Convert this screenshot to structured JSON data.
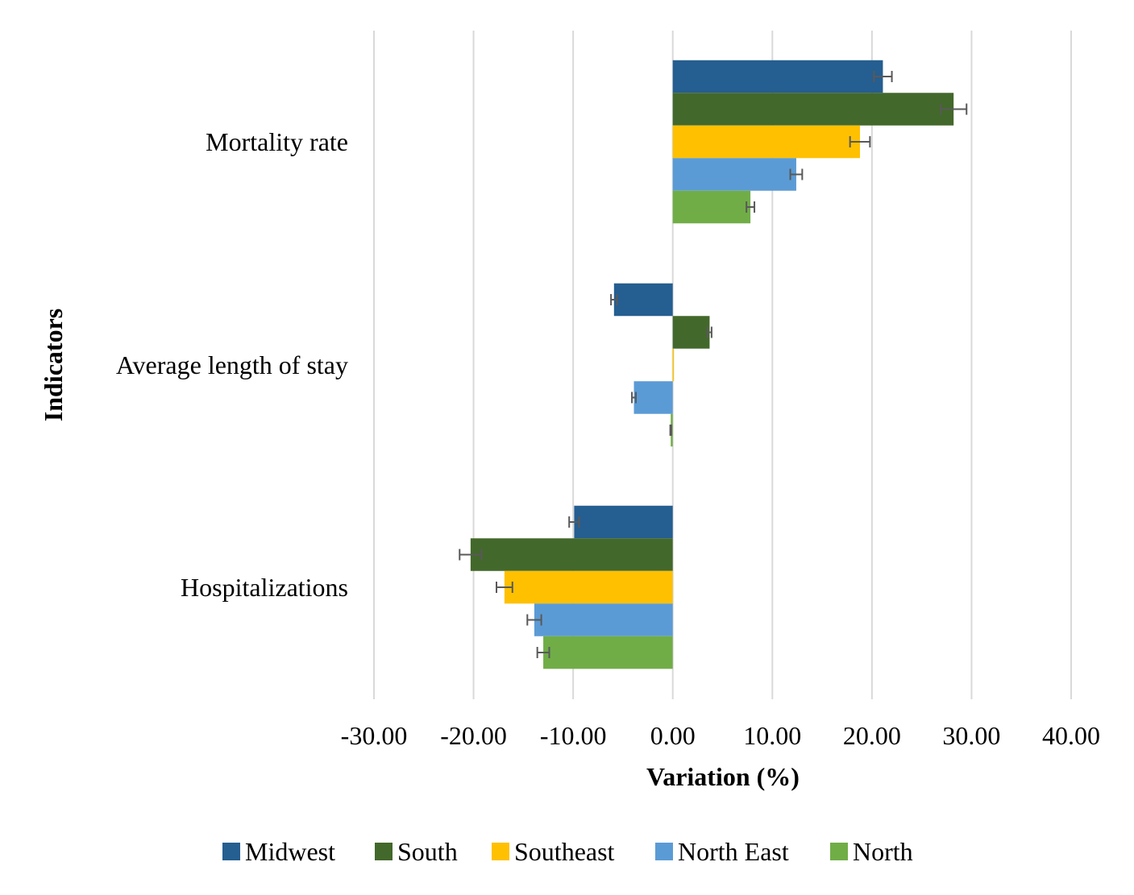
{
  "chart_data": {
    "type": "bar",
    "orientation": "horizontal",
    "title": "",
    "xlabel": "Variation (%)",
    "ylabel": "Indicators",
    "xlim": [
      -30,
      40
    ],
    "x_ticks": [
      -30,
      -20,
      -10,
      0,
      10,
      20,
      30,
      40
    ],
    "x_tick_labels": [
      "-30.00",
      "-20.00",
      "-10.00",
      "0.00",
      "10.00",
      "20.00",
      "30.00",
      "40.00"
    ],
    "grid": "vertical",
    "legend_position": "bottom",
    "categories": [
      "Mortality rate",
      "Average length of stay",
      "Hospitalizations"
    ],
    "series": [
      {
        "name": "Midwest",
        "color": "#255E91",
        "values": [
          21.1,
          -5.9,
          -9.9
        ],
        "errors": [
          0.9,
          0.3,
          0.5
        ]
      },
      {
        "name": "South",
        "color": "#43682B",
        "values": [
          28.2,
          3.7,
          -20.3
        ],
        "errors": [
          1.3,
          0.2,
          1.1
        ]
      },
      {
        "name": "Southeast",
        "color": "#FFC000",
        "values": [
          18.8,
          0.05,
          -16.9
        ],
        "errors": [
          1.0,
          0.0,
          0.8
        ]
      },
      {
        "name": "North East",
        "color": "#5B9BD5",
        "values": [
          12.4,
          -3.9,
          -13.9
        ],
        "errors": [
          0.6,
          0.2,
          0.7
        ]
      },
      {
        "name": "North",
        "color": "#70AD47",
        "values": [
          7.8,
          -0.2,
          -13.0
        ],
        "errors": [
          0.4,
          0.05,
          0.6
        ]
      }
    ]
  }
}
